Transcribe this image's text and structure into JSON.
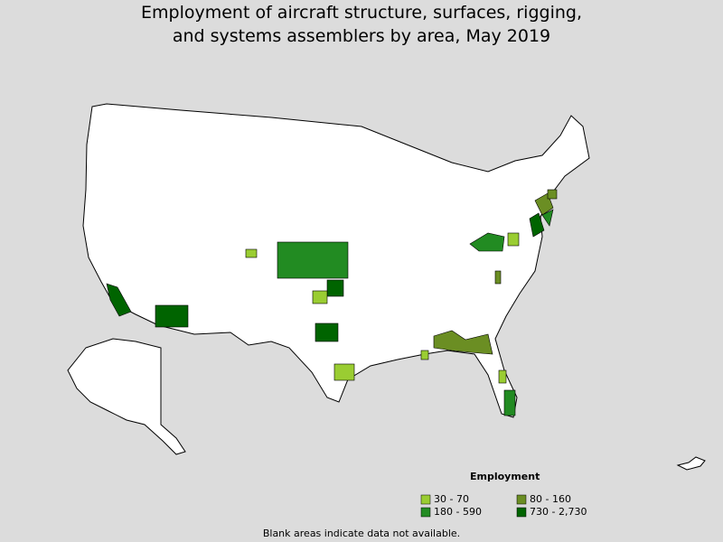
{
  "title": [
    "Employment of aircraft structure, surfaces, rigging,",
    "and systems assemblers by area, May 2019"
  ],
  "legend": {
    "title": "Employment",
    "items": [
      {
        "label": "30 - 70",
        "color": "#9acd32"
      },
      {
        "label": "80 - 160",
        "color": "#6b8e23"
      },
      {
        "label": "180 - 590",
        "color": "#228b22"
      },
      {
        "label": "730 - 2,730",
        "color": "#006400"
      }
    ]
  },
  "footnote": "Blank areas indicate data not available."
}
